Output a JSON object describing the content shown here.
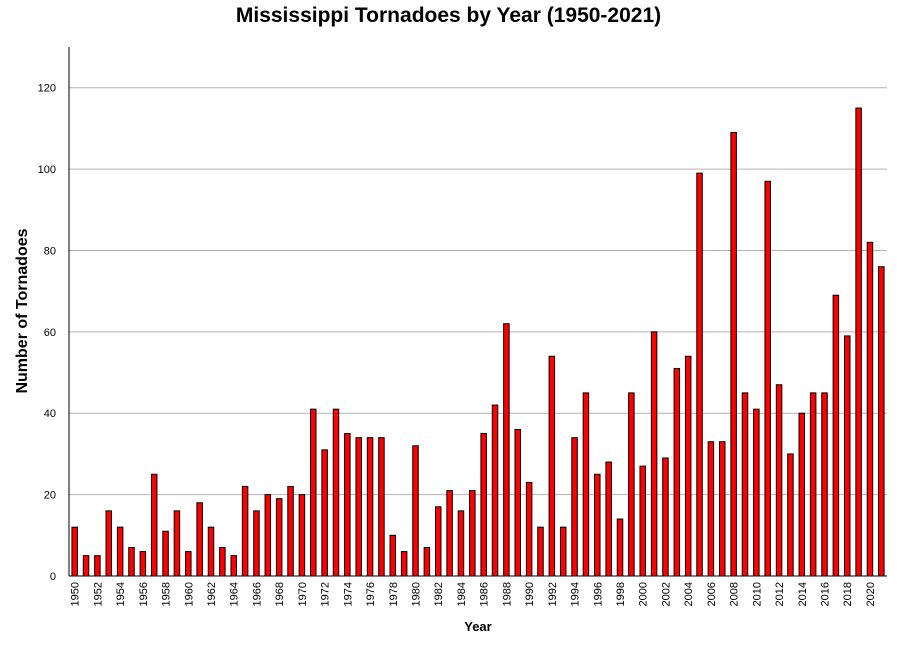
{
  "chart_data": {
    "type": "bar",
    "title": "Mississippi Tornadoes by Year (1950-2021)",
    "xlabel": "Year",
    "ylabel": "Number of Tornadoes",
    "ylim": [
      0,
      130
    ],
    "yticks": [
      0,
      20,
      40,
      60,
      80,
      100,
      120
    ],
    "grid": "horizontal",
    "bar_color": "#ff0000",
    "bar_edge_color": "#000000",
    "categories": [
      1950,
      1951,
      1952,
      1953,
      1954,
      1955,
      1956,
      1957,
      1958,
      1959,
      1960,
      1961,
      1962,
      1963,
      1964,
      1965,
      1966,
      1967,
      1968,
      1969,
      1970,
      1971,
      1972,
      1973,
      1974,
      1975,
      1976,
      1977,
      1978,
      1979,
      1980,
      1981,
      1982,
      1983,
      1984,
      1985,
      1986,
      1987,
      1988,
      1989,
      1990,
      1991,
      1992,
      1993,
      1994,
      1995,
      1996,
      1997,
      1998,
      1999,
      2000,
      2001,
      2002,
      2003,
      2004,
      2005,
      2006,
      2007,
      2008,
      2009,
      2010,
      2011,
      2012,
      2013,
      2014,
      2015,
      2016,
      2017,
      2018,
      2019,
      2020,
      2021
    ],
    "tick_labels": [
      "1950",
      "1952",
      "1954",
      "1956",
      "1958",
      "1960",
      "1962",
      "1964",
      "1966",
      "1968",
      "1970",
      "1972",
      "1974",
      "1976",
      "1978",
      "1980",
      "1982",
      "1984",
      "1986",
      "1988",
      "1990",
      "1992",
      "1994",
      "1996",
      "1998",
      "2000",
      "2002",
      "2004",
      "2006",
      "2008",
      "2010",
      "2012",
      "2014",
      "2016",
      "2018",
      "2020"
    ],
    "values": [
      12,
      5,
      5,
      16,
      12,
      7,
      6,
      25,
      11,
      16,
      6,
      18,
      12,
      7,
      5,
      22,
      16,
      20,
      19,
      22,
      20,
      41,
      31,
      41,
      35,
      34,
      34,
      34,
      10,
      6,
      32,
      7,
      17,
      21,
      16,
      21,
      35,
      42,
      62,
      36,
      23,
      12,
      54,
      12,
      34,
      45,
      25,
      28,
      14,
      45,
      27,
      60,
      29,
      51,
      54,
      99,
      33,
      33,
      109,
      45,
      41,
      97,
      47,
      30,
      40,
      45,
      45,
      69,
      59,
      115,
      82,
      76
    ]
  }
}
